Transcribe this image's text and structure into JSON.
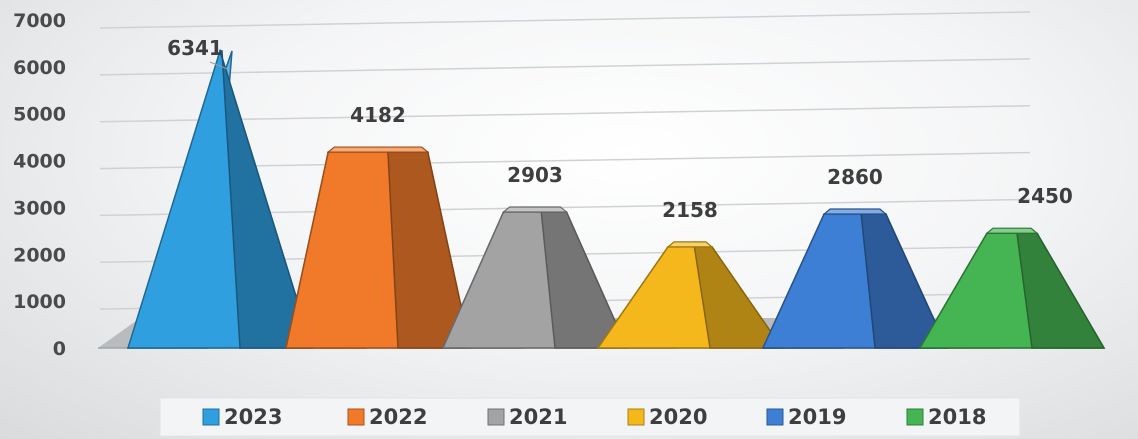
{
  "chart_data": {
    "type": "bar",
    "shape": "pyramid-3d",
    "categories": [
      "2023",
      "2022",
      "2021",
      "2020",
      "2019",
      "2018"
    ],
    "values": [
      6341,
      4182,
      2903,
      2158,
      2860,
      2450
    ],
    "data_labels": [
      "6341",
      "4182",
      "2903",
      "2158",
      "2860",
      "2450"
    ],
    "colors": [
      "#2f9fe0",
      "#f07a2a",
      "#a3a3a3",
      "#f5b81c",
      "#3e7fd6",
      "#45b452"
    ],
    "ylim": [
      0,
      7000
    ],
    "yticks": [
      0,
      1000,
      2000,
      3000,
      4000,
      5000,
      6000,
      7000
    ],
    "ytick_labels": [
      "0",
      "1000",
      "2000",
      "3000",
      "4000",
      "5000",
      "6000",
      "7000"
    ],
    "grid": true,
    "legend_position": "bottom",
    "legend": [
      "2023",
      "2022",
      "2021",
      "2020",
      "2019",
      "2018"
    ]
  }
}
